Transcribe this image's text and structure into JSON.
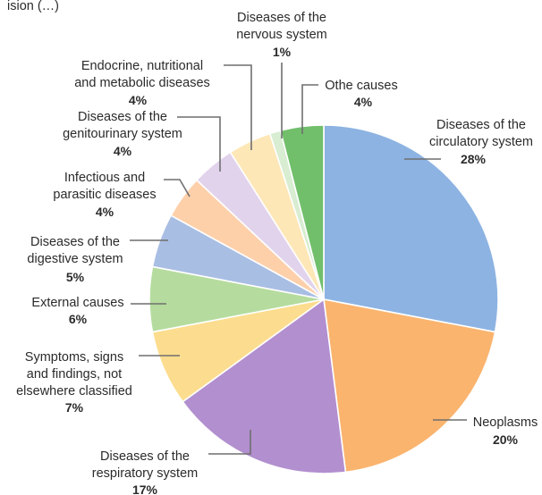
{
  "top_text": "ision (…)",
  "chart_data": {
    "type": "pie",
    "title": "",
    "start_angle_deg": 0,
    "direction": "clockwise",
    "slices": [
      {
        "label": "Diseases of the circulatory system",
        "value": 28,
        "value_label": "28%",
        "color": "#8db3e2"
      },
      {
        "label": "Neoplasms",
        "value": 20,
        "value_label": "20%",
        "color": "#fab46e"
      },
      {
        "label": "Diseases of the respiratory system",
        "value": 17,
        "value_label": "17%",
        "color": "#b28fcf"
      },
      {
        "label": "Symptoms, signs and findings, not elsewhere classified",
        "value": 7,
        "value_label": "7%",
        "color": "#fcdd8f"
      },
      {
        "label": "External causes",
        "value": 6,
        "value_label": "6%",
        "color": "#b5dc9e"
      },
      {
        "label": "Diseases of the digestive system",
        "value": 5,
        "value_label": "5%",
        "color": "#a9bee3"
      },
      {
        "label": "Infectious and parasitic diseases",
        "value": 4,
        "value_label": "4%",
        "color": "#fdd0aa"
      },
      {
        "label": "Diseases of the genitourinary system",
        "value": 4,
        "value_label": "4%",
        "color": "#e2d3ec"
      },
      {
        "label": "Endocrine, nutritional and metabolic diseases",
        "value": 4,
        "value_label": "4%",
        "color": "#fde7b7"
      },
      {
        "label": "Diseases of the nervous system",
        "value": 1,
        "value_label": "1%",
        "color": "#d8edd1"
      },
      {
        "label": "Othe causes",
        "value": 4,
        "value_label": "4%",
        "color": "#71bf6b"
      }
    ]
  }
}
